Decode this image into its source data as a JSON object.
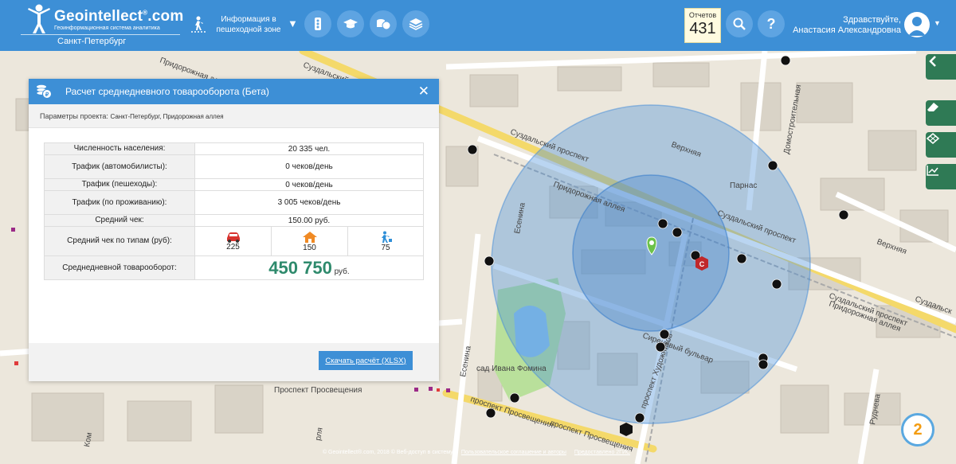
{
  "header": {
    "logo_title": "Geointellect",
    "logo_domain": ".com",
    "logo_sup": "®",
    "logo_subtitle": "Геоинформационная система аналитика",
    "city": "Санкт-Петербург",
    "pedestrian_label": "Информация в пешеходной зоне",
    "reports_label": "Отчетов",
    "reports_count": "431",
    "greeting_line1": "Здравствуйте,",
    "greeting_line2": "Анастасия Александровна",
    "accent_color": "#3d8fd6",
    "icons": [
      "traffic-light-icon",
      "education-icon",
      "money-icon",
      "layers-icon",
      "search-icon",
      "help-icon",
      "user-icon"
    ]
  },
  "panel": {
    "title": "Расчет среднедневного товарооборота (Бета)",
    "params_label": "Параметры проекта:",
    "params_value": "Санкт-Петербург, Придорожная аллея",
    "rows": [
      {
        "label": "Численность населения:",
        "value": "20 335 чел."
      },
      {
        "label": "Трафик (автомобилисты):",
        "value": "0 чеков/день"
      },
      {
        "label": "Трафик (пешеходы):",
        "value": "0 чеков/день"
      },
      {
        "label": "Трафик (по проживанию):",
        "value": "3 005 чеков/день"
      },
      {
        "label": "Средний чек:",
        "value": "150.00 руб."
      }
    ],
    "avg_check_types_label": "Средний чек по типам (руб):",
    "avg_check_types": [
      {
        "icon": "car-icon",
        "value": "225"
      },
      {
        "icon": "house-icon",
        "value": "150"
      },
      {
        "icon": "pedestrian-icon",
        "value": "75"
      }
    ],
    "turnover_label": "Среднедневной товарооборот:",
    "turnover_value": "450 750",
    "turnover_unit": "руб.",
    "turnover_color": "#2e8a6c",
    "download_label": "Скачать расчёт (XLSX)"
  },
  "map": {
    "labels": {
      "suzdalsky_1": "Суздальский проспект",
      "suzdalsky_2": "Суздальский проспект",
      "suzdalsky_3": "Суздальский проспект",
      "suzdalsky_4": "Суздальский проспект",
      "suzdalsky_5": "Суздальск",
      "pridorozhnaya_1": "Придорожная аллея",
      "pridorozhnaya_2": "Придорожная аллея",
      "pridorozhnaya_3": "Придорожная аллея",
      "verkhnyaya_1": "Верхняя",
      "verkhnyaya_2": "Верхняя",
      "domostroitelnaya": "Домостроительная",
      "parnas": "Парнас",
      "sirenevy": "Сиреневый бульвар",
      "yesenina_1": "Есенина",
      "yesenina_2": "Есенина",
      "khudozhnikov": "проспект Художников",
      "prosveshcheniya_1": "Проспект Просвещения",
      "prosveshcheniya_2": "проспект Просвещения",
      "prosveshcheniya_3": "проспект Просвещения",
      "sad": "сад Ивана Фомина",
      "rudneva": "Руднева",
      "kom": "Ком",
      "rlya": "рля"
    }
  },
  "footer": {
    "copyright": "© Geointellect®.com, 2018 © Веб-доступ в систему -",
    "terms_link": "Пользовательское соглашение и авторы",
    "gis_link": "Предоставлено 2ГИС",
    "twogis_label": "2"
  }
}
